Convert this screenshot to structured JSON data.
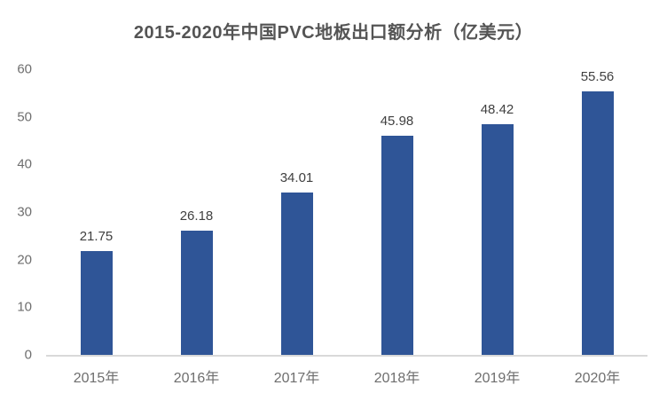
{
  "chart_data": {
    "type": "bar",
    "title": "2015-2020年中国PVC地板出口额分析（亿美元）",
    "categories": [
      "2015年",
      "2016年",
      "2017年",
      "2018年",
      "2019年",
      "2020年"
    ],
    "values": [
      21.75,
      26.18,
      34.01,
      45.98,
      48.42,
      55.56
    ],
    "value_labels": [
      "21.75",
      "26.18",
      "34.01",
      "45.98",
      "48.42",
      "55.56"
    ],
    "xlabel": "",
    "ylabel": "",
    "ylim": [
      0,
      60
    ],
    "yticks": [
      0,
      10,
      20,
      30,
      40,
      50,
      60
    ],
    "grid": false,
    "legend_position": "none",
    "colors": {
      "bar": "#2F5597",
      "title_text": "#545454",
      "data_label_text": "#404040",
      "axis_tick_text": "#6e6e6e",
      "axis_line": "#d9d9d9",
      "background": "#ffffff"
    }
  }
}
